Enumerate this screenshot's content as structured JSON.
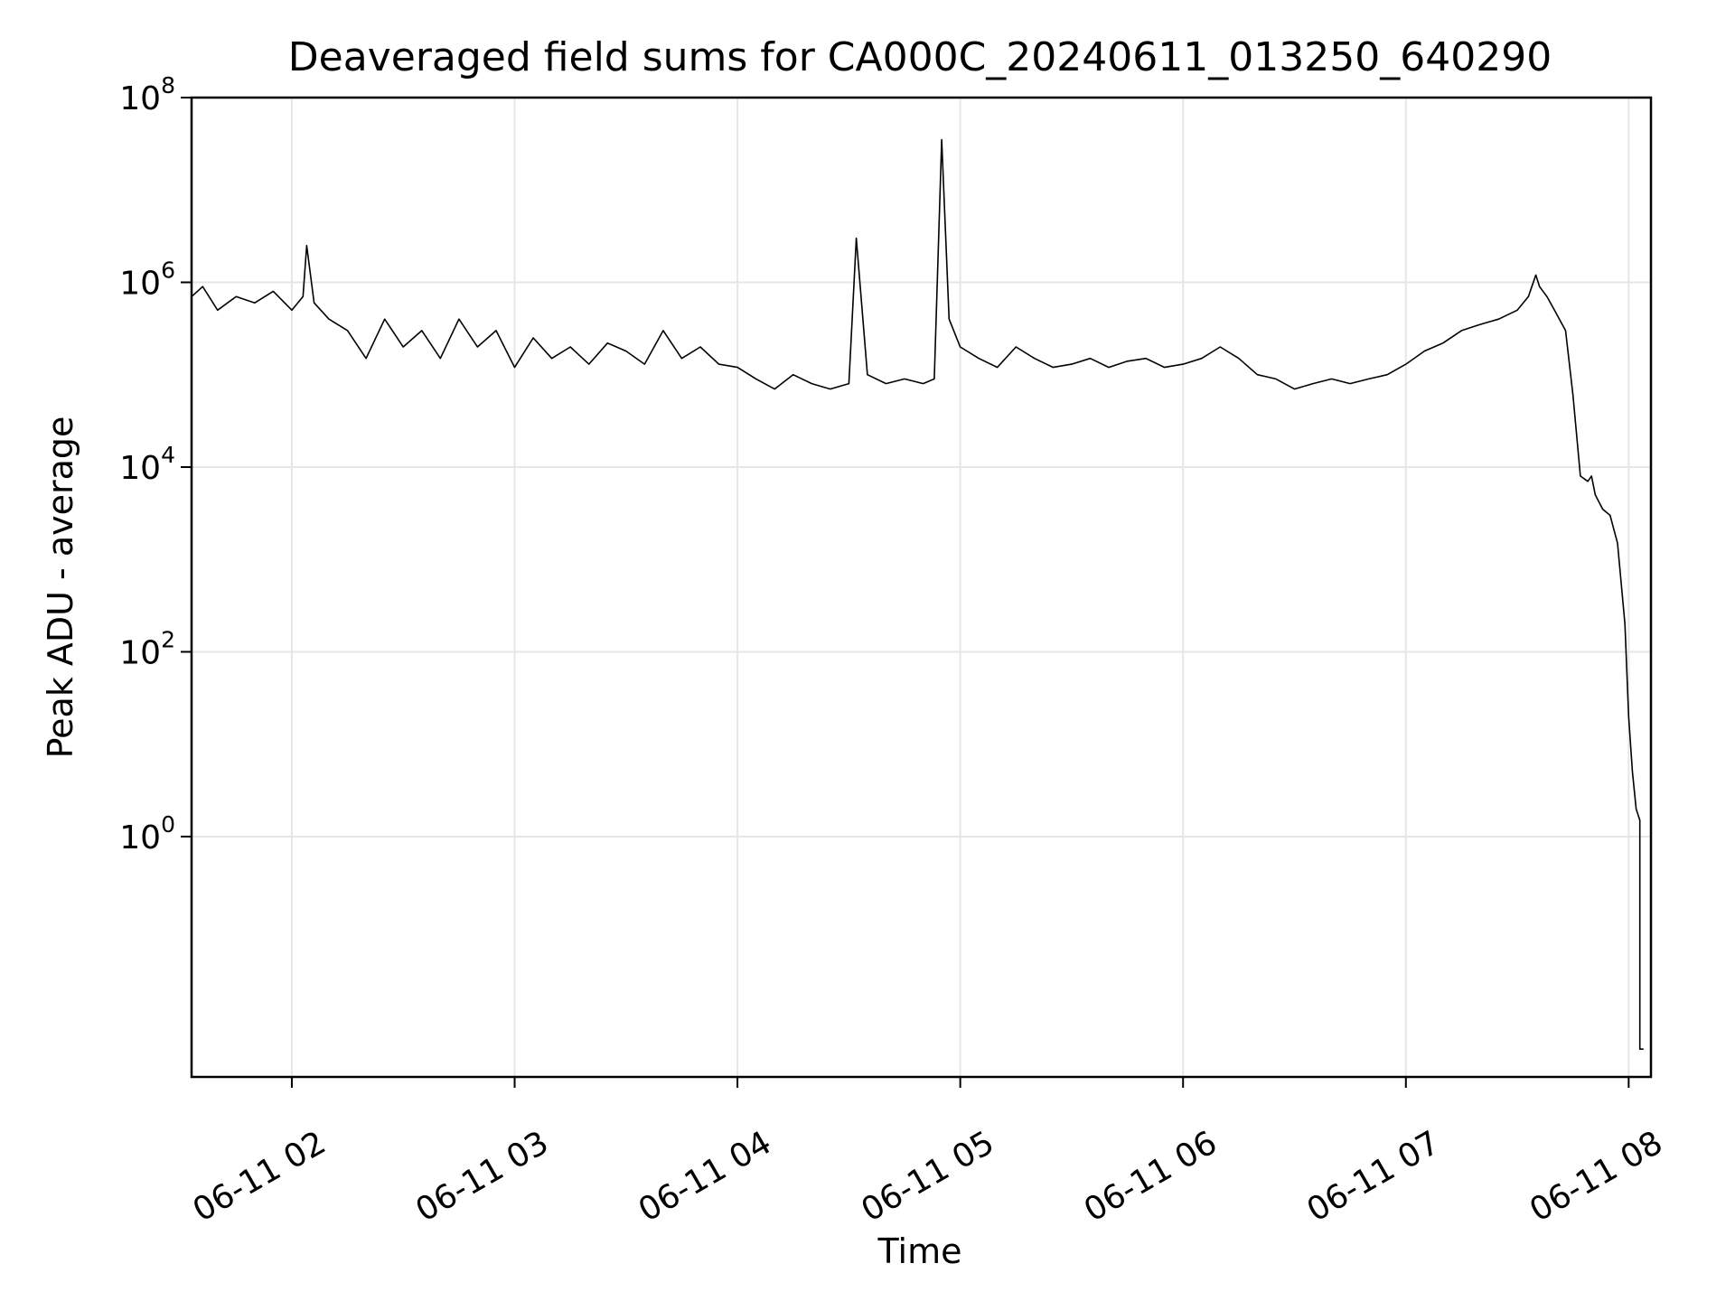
{
  "chart_data": {
    "type": "line",
    "title": "Deaveraged field sums for CA000C_20240611_013250_640290",
    "xlabel": "Time",
    "ylabel": "Peak ADU - average",
    "xscale": "time",
    "yscale": "log",
    "xlim": [
      "2024-06-11T01:33",
      "2024-06-11T08:06"
    ],
    "ylim": [
      0.0025,
      100000000
    ],
    "grid": true,
    "x_ticks": [
      {
        "t": "2024-06-11T02:00",
        "label": "06-11 02"
      },
      {
        "t": "2024-06-11T03:00",
        "label": "06-11 03"
      },
      {
        "t": "2024-06-11T04:00",
        "label": "06-11 04"
      },
      {
        "t": "2024-06-11T05:00",
        "label": "06-11 05"
      },
      {
        "t": "2024-06-11T06:00",
        "label": "06-11 06"
      },
      {
        "t": "2024-06-11T07:00",
        "label": "06-11 07"
      },
      {
        "t": "2024-06-11T08:00",
        "label": "06-11 08"
      }
    ],
    "y_ticks": [
      {
        "value": 1,
        "base": "10",
        "exp": "0"
      },
      {
        "value": 100,
        "base": "10",
        "exp": "2"
      },
      {
        "value": 10000,
        "base": "10",
        "exp": "4"
      },
      {
        "value": 1000000,
        "base": "10",
        "exp": "6"
      },
      {
        "value": 100000000,
        "base": "10",
        "exp": "8"
      }
    ],
    "series": [
      {
        "color": "#000000",
        "x": [
          "2024-06-11T01:33",
          "2024-06-11T01:36",
          "2024-06-11T01:40",
          "2024-06-11T01:45",
          "2024-06-11T01:50",
          "2024-06-11T01:55",
          "2024-06-11T02:00",
          "2024-06-11T02:03",
          "2024-06-11T02:04",
          "2024-06-11T02:06",
          "2024-06-11T02:10",
          "2024-06-11T02:15",
          "2024-06-11T02:20",
          "2024-06-11T02:25",
          "2024-06-11T02:30",
          "2024-06-11T02:35",
          "2024-06-11T02:40",
          "2024-06-11T02:45",
          "2024-06-11T02:50",
          "2024-06-11T02:55",
          "2024-06-11T03:00",
          "2024-06-11T03:05",
          "2024-06-11T03:10",
          "2024-06-11T03:15",
          "2024-06-11T03:20",
          "2024-06-11T03:25",
          "2024-06-11T03:30",
          "2024-06-11T03:35",
          "2024-06-11T03:40",
          "2024-06-11T03:45",
          "2024-06-11T03:50",
          "2024-06-11T03:55",
          "2024-06-11T04:00",
          "2024-06-11T04:05",
          "2024-06-11T04:10",
          "2024-06-11T04:15",
          "2024-06-11T04:20",
          "2024-06-11T04:25",
          "2024-06-11T04:30",
          "2024-06-11T04:32",
          "2024-06-11T04:35",
          "2024-06-11T04:40",
          "2024-06-11T04:45",
          "2024-06-11T04:50",
          "2024-06-11T04:53",
          "2024-06-11T04:55",
          "2024-06-11T04:57",
          "2024-06-11T05:00",
          "2024-06-11T05:05",
          "2024-06-11T05:10",
          "2024-06-11T05:15",
          "2024-06-11T05:20",
          "2024-06-11T05:25",
          "2024-06-11T05:30",
          "2024-06-11T05:35",
          "2024-06-11T05:40",
          "2024-06-11T05:45",
          "2024-06-11T05:50",
          "2024-06-11T05:55",
          "2024-06-11T06:00",
          "2024-06-11T06:05",
          "2024-06-11T06:10",
          "2024-06-11T06:15",
          "2024-06-11T06:20",
          "2024-06-11T06:25",
          "2024-06-11T06:30",
          "2024-06-11T06:35",
          "2024-06-11T06:40",
          "2024-06-11T06:45",
          "2024-06-11T06:50",
          "2024-06-11T06:55",
          "2024-06-11T07:00",
          "2024-06-11T07:05",
          "2024-06-11T07:10",
          "2024-06-11T07:15",
          "2024-06-11T07:20",
          "2024-06-11T07:25",
          "2024-06-11T07:30",
          "2024-06-11T07:33",
          "2024-06-11T07:35",
          "2024-06-11T07:36",
          "2024-06-11T07:38",
          "2024-06-11T07:40",
          "2024-06-11T07:43",
          "2024-06-11T07:45",
          "2024-06-11T07:47",
          "2024-06-11T07:49",
          "2024-06-11T07:50",
          "2024-06-11T07:51",
          "2024-06-11T07:53",
          "2024-06-11T07:55",
          "2024-06-11T07:57",
          "2024-06-11T07:59",
          "2024-06-11T08:00",
          "2024-06-11T08:01",
          "2024-06-11T08:02",
          "2024-06-11T08:03",
          "2024-06-11T08:03",
          "2024-06-11T08:03",
          "2024-06-11T08:04"
        ],
        "y": [
          700000,
          900000,
          500000,
          700000,
          600000,
          800000,
          500000,
          700000,
          2500000,
          600000,
          400000,
          300000,
          150000,
          400000,
          200000,
          300000,
          150000,
          400000,
          200000,
          300000,
          120000,
          250000,
          150000,
          200000,
          130000,
          220000,
          180000,
          130000,
          300000,
          150000,
          200000,
          130000,
          120000,
          90000,
          70000,
          100000,
          80000,
          70000,
          80000,
          3000000,
          100000,
          80000,
          90000,
          80000,
          90000,
          35000000,
          400000,
          200000,
          150000,
          120000,
          200000,
          150000,
          120000,
          130000,
          150000,
          120000,
          140000,
          150000,
          120000,
          130000,
          150000,
          200000,
          150000,
          100000,
          90000,
          70000,
          80000,
          90000,
          80000,
          90000,
          100000,
          130000,
          180000,
          220000,
          300000,
          350000,
          400000,
          500000,
          700000,
          1200000,
          900000,
          700000,
          500000,
          300000,
          60000,
          8000,
          7000,
          8000,
          5000,
          3500,
          3000,
          1500,
          200,
          20,
          5,
          2,
          1.5,
          0.005,
          0.005,
          0.005
        ]
      }
    ]
  }
}
